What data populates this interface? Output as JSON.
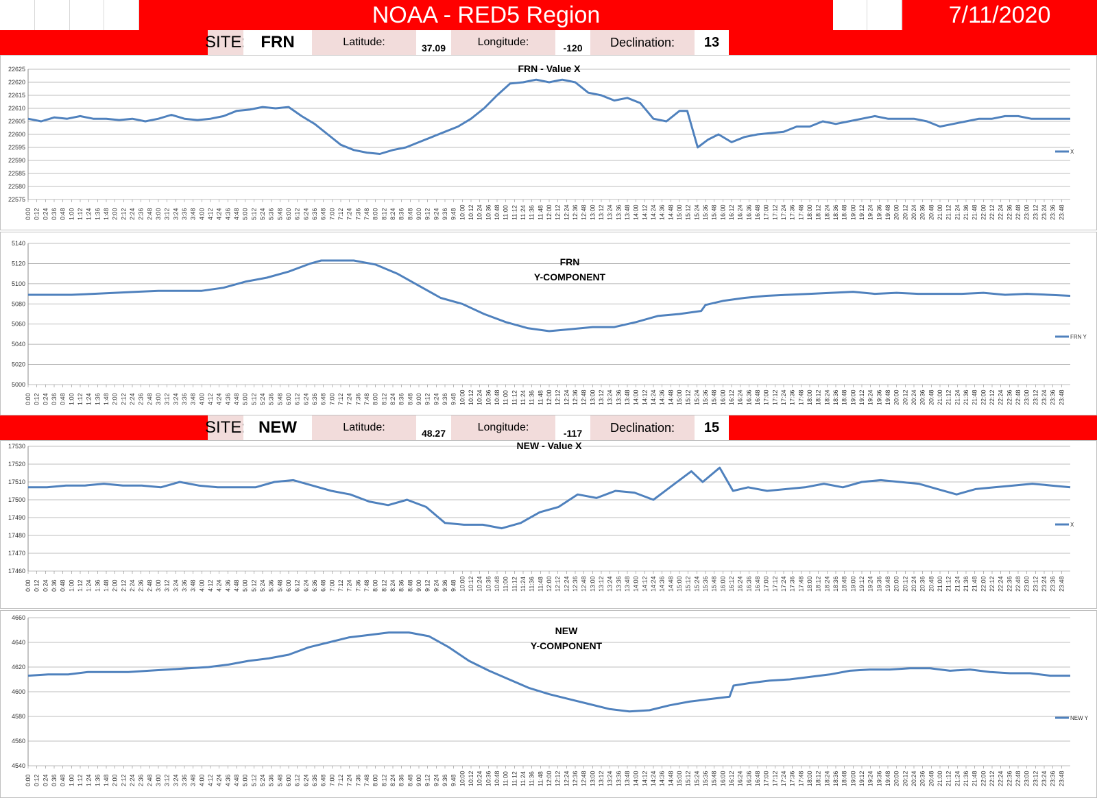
{
  "header": {
    "title": "NOAA - RED5 Region",
    "date": "7/11/2020"
  },
  "sites": [
    {
      "site_label": "SITE:",
      "site": "FRN",
      "lat_label": "Latitude:",
      "lat": "37.09",
      "lon_label": "Longitude:",
      "lon": "-120",
      "dec_label": "Declination:",
      "dec": "13"
    },
    {
      "site_label": "SITE:",
      "site": "NEW",
      "lat_label": "Latitude:",
      "lat": "48.27",
      "lon_label": "Longitude:",
      "lon": "-117",
      "dec_label": "Declination:",
      "dec": "15"
    }
  ],
  "colors": {
    "line": "#4f81bd",
    "banner": "#ff0000",
    "label_bg": "#f2dcdb"
  },
  "chart_data": [
    {
      "type": "line",
      "title": "FRN - Value X",
      "legend": "X",
      "legend_position": "right",
      "ylim": [
        22575,
        22625
      ],
      "ystep": 5,
      "grid": true,
      "x_range": [
        "0:00",
        "23:59"
      ],
      "tick_interval_minutes": 12,
      "series": [
        {
          "name": "X",
          "points": [
            [
              0,
              22606
            ],
            [
              0.5,
              22605
            ],
            [
              1,
              22606.5
            ],
            [
              1.5,
              22606
            ],
            [
              2,
              22607
            ],
            [
              2.5,
              22606
            ],
            [
              3,
              22606
            ],
            [
              3.5,
              22605.5
            ],
            [
              4,
              22606
            ],
            [
              4.5,
              22605
            ],
            [
              5,
              22606
            ],
            [
              5.5,
              22607.5
            ],
            [
              6,
              22606
            ],
            [
              6.5,
              22605.5
            ],
            [
              7,
              22606
            ],
            [
              7.5,
              22607
            ],
            [
              8,
              22609
            ],
            [
              8.5,
              22609.5
            ],
            [
              9,
              22610.5
            ],
            [
              9.5,
              22610
            ],
            [
              10,
              22610.5
            ],
            [
              10.5,
              22607
            ],
            [
              11,
              22604
            ],
            [
              11.5,
              22600
            ],
            [
              12,
              22596
            ],
            [
              12.5,
              22594
            ],
            [
              13,
              22593
            ],
            [
              13.5,
              22592.5
            ],
            [
              14,
              22594
            ],
            [
              14.5,
              22595
            ],
            [
              15,
              22597
            ],
            [
              15.5,
              22599
            ],
            [
              16,
              22601
            ],
            [
              16.5,
              22603
            ],
            [
              17,
              22606
            ],
            [
              17.5,
              22610
            ],
            [
              18,
              22615
            ],
            [
              18.5,
              22619.5
            ],
            [
              19,
              22620
            ],
            [
              19.5,
              22621
            ],
            [
              20,
              22620
            ],
            [
              20.5,
              22621
            ],
            [
              21,
              22620
            ],
            [
              21.5,
              22616
            ],
            [
              22,
              22615
            ],
            [
              22.5,
              22613
            ],
            [
              23,
              22614
            ],
            [
              23.5,
              22612
            ],
            [
              24,
              22606
            ],
            [
              24.5,
              22605
            ],
            [
              25,
              22609
            ],
            [
              25.3,
              22609
            ],
            [
              25.7,
              22595
            ],
            [
              26.1,
              22598
            ],
            [
              26.5,
              22600
            ],
            [
              27,
              22597
            ],
            [
              27.5,
              22599
            ],
            [
              28,
              22600
            ],
            [
              28.5,
              22600.5
            ],
            [
              29,
              22601
            ],
            [
              29.5,
              22603
            ],
            [
              30,
              22603
            ],
            [
              30.5,
              22605
            ],
            [
              31,
              22604
            ],
            [
              31.5,
              22605
            ],
            [
              32,
              22606
            ],
            [
              32.5,
              22607
            ],
            [
              33,
              22606
            ],
            [
              33.5,
              22606
            ],
            [
              34,
              22606
            ],
            [
              34.5,
              22605
            ],
            [
              35,
              22603
            ],
            [
              35.5,
              22604
            ],
            [
              36,
              22605
            ],
            [
              36.5,
              22606
            ],
            [
              37,
              22606
            ],
            [
              37.5,
              22607
            ],
            [
              38,
              22607
            ],
            [
              38.5,
              22606
            ],
            [
              39,
              22606
            ],
            [
              39.5,
              22606
            ],
            [
              40,
              22606
            ]
          ]
        }
      ],
      "yfmt": 0
    },
    {
      "type": "line",
      "title": "FRN",
      "subtitle": "Y-COMPONENT",
      "legend": "FRN Y",
      "legend_position": "right",
      "ylim": [
        5000,
        5140
      ],
      "ystep": 20,
      "grid": true,
      "x_range": [
        "0:00",
        "23:59"
      ],
      "tick_interval_minutes": 12,
      "series": [
        {
          "name": "FRN Y",
          "points": [
            [
              0,
              5089
            ],
            [
              1,
              5089
            ],
            [
              2,
              5089
            ],
            [
              3,
              5090
            ],
            [
              4,
              5091
            ],
            [
              5,
              5092
            ],
            [
              6,
              5093
            ],
            [
              7,
              5093
            ],
            [
              8,
              5093
            ],
            [
              9,
              5096
            ],
            [
              10,
              5102
            ],
            [
              11,
              5106
            ],
            [
              12,
              5112
            ],
            [
              13,
              5120
            ],
            [
              13.5,
              5123
            ],
            [
              14,
              5123
            ],
            [
              15,
              5123
            ],
            [
              16,
              5119
            ],
            [
              17,
              5110
            ],
            [
              18,
              5098
            ],
            [
              19,
              5086
            ],
            [
              20,
              5080
            ],
            [
              21,
              5070
            ],
            [
              22,
              5062
            ],
            [
              23,
              5056
            ],
            [
              24,
              5053
            ],
            [
              25,
              5055
            ],
            [
              26,
              5057
            ],
            [
              27,
              5057
            ],
            [
              28,
              5062
            ],
            [
              29,
              5068
            ],
            [
              30,
              5070
            ],
            [
              31,
              5073
            ],
            [
              31.2,
              5079
            ],
            [
              32,
              5083
            ],
            [
              33,
              5086
            ],
            [
              34,
              5088
            ],
            [
              35,
              5089
            ],
            [
              36,
              5090
            ],
            [
              37,
              5091
            ],
            [
              38,
              5092
            ],
            [
              39,
              5090
            ],
            [
              40,
              5091
            ],
            [
              41,
              5090
            ],
            [
              42,
              5090
            ],
            [
              43,
              5090
            ],
            [
              44,
              5091
            ],
            [
              45,
              5089
            ],
            [
              46,
              5090
            ],
            [
              47,
              5089
            ],
            [
              48,
              5088
            ]
          ]
        }
      ],
      "yfmt": 0
    },
    {
      "type": "line",
      "title": "NEW - Value X",
      "legend": "X",
      "legend_position": "right",
      "ylim": [
        17460,
        17530
      ],
      "ystep": 10,
      "grid": true,
      "x_range": [
        "0:00",
        "23:59"
      ],
      "tick_interval_minutes": 12,
      "series": [
        {
          "name": "X",
          "points": [
            [
              0,
              17507
            ],
            [
              1,
              17507
            ],
            [
              2,
              17508
            ],
            [
              3,
              17508
            ],
            [
              4,
              17509
            ],
            [
              5,
              17508
            ],
            [
              6,
              17508
            ],
            [
              7,
              17507
            ],
            [
              8,
              17510
            ],
            [
              9,
              17508
            ],
            [
              10,
              17507
            ],
            [
              11,
              17507
            ],
            [
              12,
              17507
            ],
            [
              13,
              17510
            ],
            [
              14,
              17511
            ],
            [
              15,
              17508
            ],
            [
              16,
              17505
            ],
            [
              17,
              17503
            ],
            [
              18,
              17499
            ],
            [
              19,
              17497
            ],
            [
              20,
              17500
            ],
            [
              21,
              17496
            ],
            [
              22,
              17487
            ],
            [
              23,
              17486
            ],
            [
              24,
              17486
            ],
            [
              25,
              17484
            ],
            [
              26,
              17487
            ],
            [
              27,
              17493
            ],
            [
              28,
              17496
            ],
            [
              29,
              17503
            ],
            [
              30,
              17501
            ],
            [
              31,
              17505
            ],
            [
              32,
              17504
            ],
            [
              33,
              17500
            ],
            [
              34,
              17508
            ],
            [
              35,
              17516
            ],
            [
              35.6,
              17510
            ],
            [
              36.5,
              17518
            ],
            [
              37.2,
              17505
            ],
            [
              38,
              17507
            ],
            [
              39,
              17505
            ],
            [
              40,
              17506
            ],
            [
              41,
              17507
            ],
            [
              42,
              17509
            ],
            [
              43,
              17507
            ],
            [
              44,
              17510
            ],
            [
              45,
              17511
            ],
            [
              46,
              17510
            ],
            [
              47,
              17509
            ],
            [
              48,
              17506
            ],
            [
              49,
              17503
            ],
            [
              50,
              17506
            ],
            [
              51,
              17507
            ],
            [
              52,
              17508
            ],
            [
              53,
              17509
            ],
            [
              54,
              17508
            ],
            [
              55,
              17507
            ]
          ]
        }
      ],
      "yfmt": 0
    },
    {
      "type": "line",
      "title": "NEW",
      "subtitle": "Y-COMPONENT",
      "legend": "NEW Y",
      "legend_position": "right",
      "ylim": [
        4540,
        4660
      ],
      "ystep": 20,
      "grid": true,
      "x_range": [
        "0:00",
        "23:59"
      ],
      "tick_interval_minutes": 12,
      "series": [
        {
          "name": "NEW Y",
          "points": [
            [
              0,
              4613
            ],
            [
              1,
              4614
            ],
            [
              2,
              4614
            ],
            [
              3,
              4616
            ],
            [
              4,
              4616
            ],
            [
              5,
              4616
            ],
            [
              6,
              4617
            ],
            [
              7,
              4618
            ],
            [
              8,
              4619
            ],
            [
              9,
              4620
            ],
            [
              10,
              4622
            ],
            [
              11,
              4625
            ],
            [
              12,
              4627
            ],
            [
              13,
              4630
            ],
            [
              14,
              4636
            ],
            [
              15,
              4640
            ],
            [
              16,
              4644
            ],
            [
              17,
              4646
            ],
            [
              18,
              4648
            ],
            [
              19,
              4648
            ],
            [
              20,
              4645
            ],
            [
              21,
              4636
            ],
            [
              22,
              4625
            ],
            [
              23,
              4617
            ],
            [
              24,
              4610
            ],
            [
              25,
              4603
            ],
            [
              26,
              4598
            ],
            [
              27,
              4594
            ],
            [
              28,
              4590
            ],
            [
              29,
              4586
            ],
            [
              30,
              4584
            ],
            [
              31,
              4585
            ],
            [
              32,
              4589
            ],
            [
              33,
              4592
            ],
            [
              34,
              4594
            ],
            [
              35,
              4596
            ],
            [
              35.2,
              4605
            ],
            [
              36,
              4607
            ],
            [
              37,
              4609
            ],
            [
              38,
              4610
            ],
            [
              39,
              4612
            ],
            [
              40,
              4614
            ],
            [
              41,
              4617
            ],
            [
              42,
              4618
            ],
            [
              43,
              4618
            ],
            [
              44,
              4619
            ],
            [
              45,
              4619
            ],
            [
              46,
              4617
            ],
            [
              47,
              4618
            ],
            [
              48,
              4616
            ],
            [
              49,
              4615
            ],
            [
              50,
              4615
            ],
            [
              51,
              4613
            ],
            [
              52,
              4613
            ]
          ]
        }
      ],
      "yfmt": 0
    }
  ]
}
